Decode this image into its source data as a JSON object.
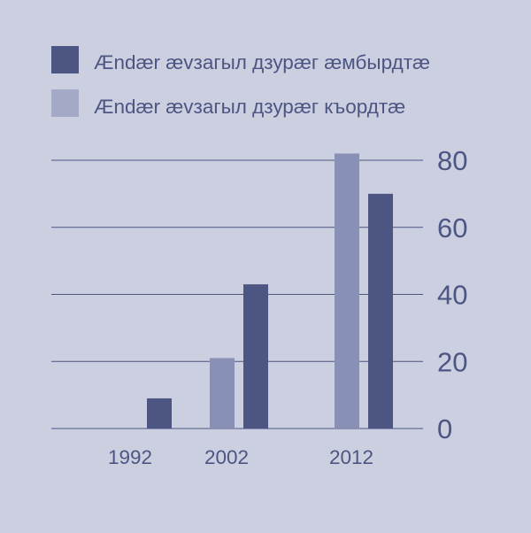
{
  "chart_data": {
    "type": "bar",
    "categories": [
      "1992",
      "2002",
      "2012"
    ],
    "series": [
      {
        "name": "Ændær ævзагыл дзурæг къордтæ",
        "values": [
          0,
          21,
          82
        ]
      },
      {
        "name": "Ændær ævзагыл дзурæг æмбырдтæ",
        "values": [
          9,
          43,
          70
        ]
      }
    ],
    "y_ticks": [
      "0",
      "20",
      "40",
      "60",
      "80"
    ],
    "ylim": [
      0,
      80
    ],
    "y_axis_side": "right",
    "grid": true,
    "legend_position": "top-left"
  },
  "colors": {
    "background": "#cbcfe0",
    "series_light": "#8990b5",
    "series_dark": "#4d5582",
    "legend_light": "#a4a9c6",
    "gridline": "#4d5582",
    "text": "#4d5582"
  }
}
